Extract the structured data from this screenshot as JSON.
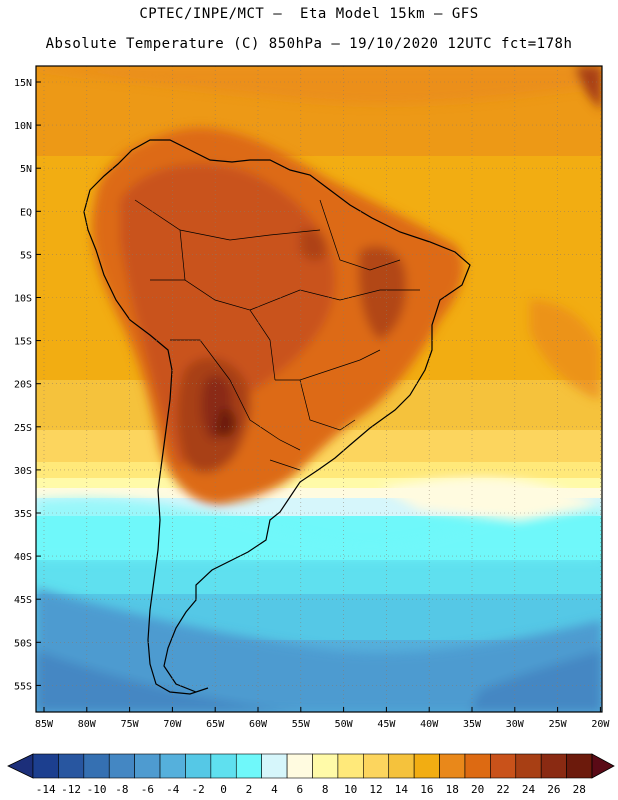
{
  "title_line1": "CPTEC/INPE/MCT –  Eta Model 15km – GFS",
  "title_line2": "Absolute Temperature (C) 850hPa – 19/10/2020 12UTC fct=178h",
  "lat_labels": [
    "15N",
    "10N",
    "5N",
    "EQ",
    "5S",
    "10S",
    "15S",
    "20S",
    "25S",
    "30S",
    "35S",
    "40S",
    "45S",
    "50S",
    "55S"
  ],
  "lon_labels": [
    "85W",
    "80W",
    "75W",
    "70W",
    "65W",
    "60W",
    "55W",
    "50W",
    "45W",
    "40W",
    "35W",
    "30W",
    "25W",
    "20W"
  ],
  "colorbar": {
    "labels": [
      "-14",
      "-12",
      "-10",
      "-8",
      "-6",
      "-4",
      "-2",
      "0",
      "2",
      "4",
      "6",
      "8",
      "10",
      "12",
      "14",
      "16",
      "18",
      "20",
      "22",
      "24",
      "26",
      "28"
    ],
    "colors": [
      "#1c3f8f",
      "#2856a0",
      "#3570b2",
      "#4487c3",
      "#4e9bd0",
      "#55b0dc",
      "#55c8e6",
      "#5fe0ef",
      "#6ff8fa",
      "#d6f6fb",
      "#fffbe0",
      "#fffaa8",
      "#ffe97a",
      "#fcd55e",
      "#f5c23c",
      "#f2ad12",
      "#e9881a",
      "#dd6a12",
      "#c9521a",
      "#a83f14",
      "#8a2a12",
      "#6c1a0c"
    ],
    "end_low_color": "#1c2f7a",
    "end_high_color": "#5a0a16"
  }
}
